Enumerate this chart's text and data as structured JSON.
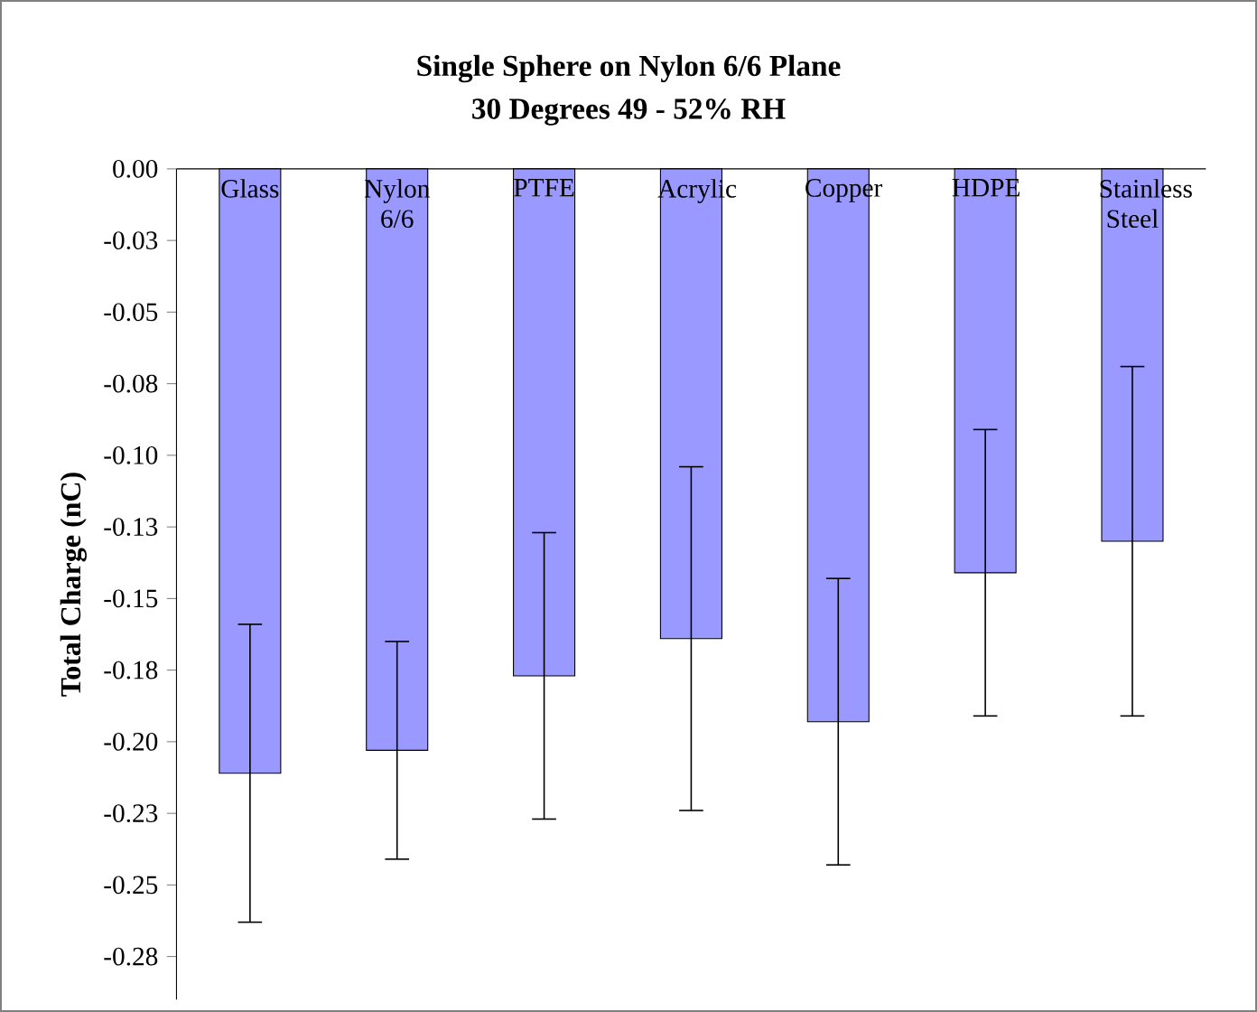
{
  "chart_data": {
    "type": "bar",
    "title": "Single Sphere on Nylon 6/6 Plane",
    "subtitle": "30 Degrees 49 - 52% RH",
    "ylabel": "Total Charge (nC)",
    "categories": [
      "Glass",
      "Nylon 6/6",
      "PTFE",
      "Acrylic",
      "Copper",
      "HDPE",
      "Stainless Steel"
    ],
    "values": [
      -0.211,
      -0.203,
      -0.177,
      -0.164,
      -0.193,
      -0.141,
      -0.13
    ],
    "errors": [
      0.052,
      0.038,
      0.05,
      0.06,
      0.05,
      0.05,
      0.061
    ],
    "color": "#9999ff",
    "ylim": [
      -0.29,
      0
    ],
    "yticks": [
      {
        "value": 0,
        "label": "0.00"
      },
      {
        "value": -0.025,
        "label": "-0.03"
      },
      {
        "value": -0.05,
        "label": "-0.05"
      },
      {
        "value": -0.075,
        "label": "-0.08"
      },
      {
        "value": -0.1,
        "label": "-0.10"
      },
      {
        "value": -0.125,
        "label": "-0.13"
      },
      {
        "value": -0.15,
        "label": "-0.15"
      },
      {
        "value": -0.175,
        "label": "-0.18"
      },
      {
        "value": -0.2,
        "label": "-0.20"
      },
      {
        "value": -0.225,
        "label": "-0.23"
      },
      {
        "value": -0.25,
        "label": "-0.25"
      },
      {
        "value": -0.275,
        "label": "-0.28"
      }
    ],
    "grid": false
  }
}
